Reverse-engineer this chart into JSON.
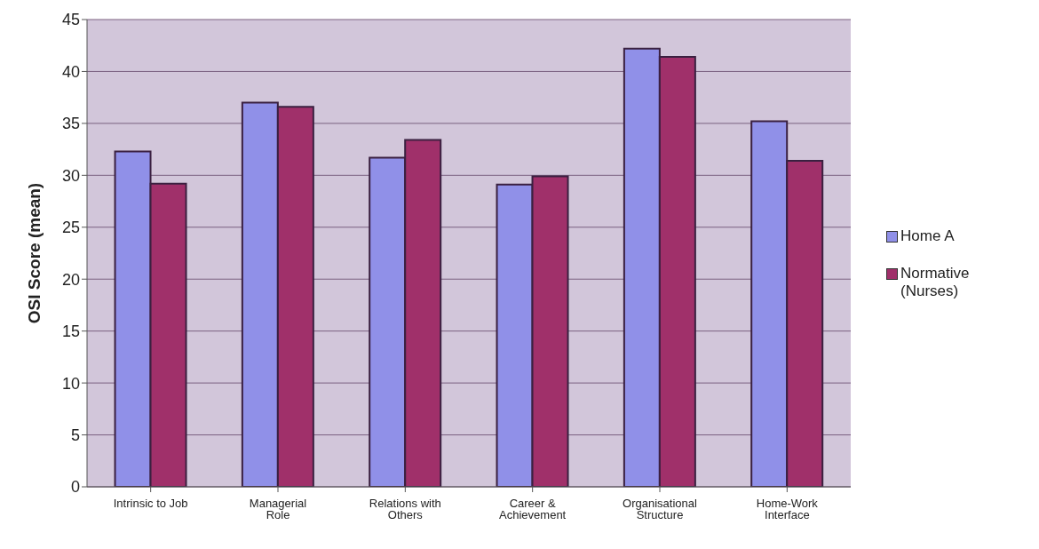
{
  "chart_data": {
    "type": "bar",
    "ylabel": "OSI Score (mean)",
    "categories": [
      "Intrinsic to Job",
      "Managerial Role",
      "Relations with Others",
      "Career & Achievement",
      "Organisational Structure",
      "Home-Work Interface"
    ],
    "series": [
      {
        "name": "Home A",
        "color": "#9090e8",
        "values": [
          32.3,
          37.0,
          31.7,
          29.1,
          42.2,
          35.2
        ]
      },
      {
        "name": "Normative (Nurses)",
        "color": "#a0306a",
        "values": [
          29.2,
          36.6,
          33.4,
          29.9,
          41.4,
          31.4
        ]
      }
    ],
    "ylim": [
      0,
      45
    ],
    "yticks": [
      0,
      5,
      10,
      15,
      20,
      25,
      30,
      35,
      40,
      45
    ],
    "grid": "y",
    "legend": "right"
  }
}
